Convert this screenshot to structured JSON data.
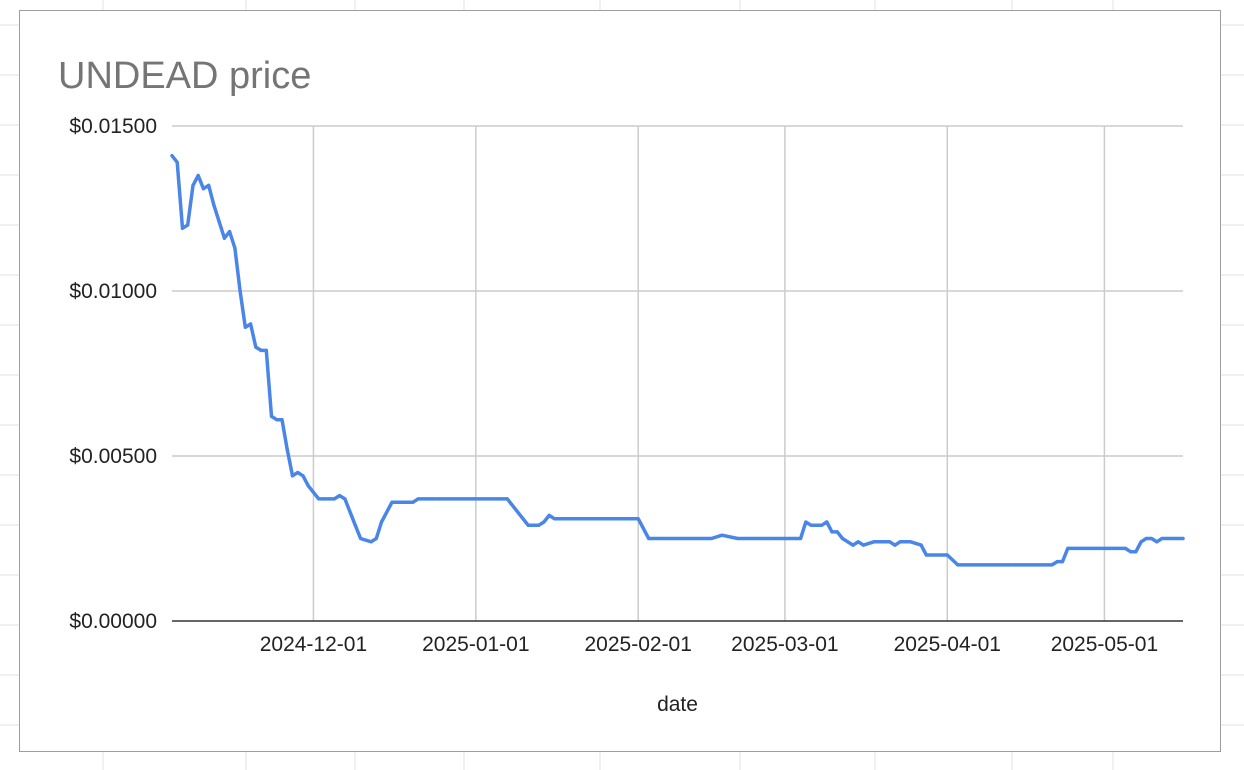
{
  "chart_data": {
    "type": "line",
    "title": "UNDEAD price",
    "xlabel": "date",
    "ylabel": "",
    "ylim": [
      0,
      0.015
    ],
    "xlim": [
      "2024-11-04",
      "2025-05-16"
    ],
    "y_ticks": [
      "$0.00000",
      "$0.00500",
      "$0.01000",
      "$0.01500"
    ],
    "y_tick_values": [
      0,
      0.005,
      0.01,
      0.015
    ],
    "x_ticks": [
      "2024-12-01",
      "2025-01-01",
      "2025-02-01",
      "2025-03-01",
      "2025-04-01",
      "2025-05-01"
    ],
    "grid": true,
    "line_color": "#4a86e8",
    "series": [
      {
        "x": [
          "2024-11-04",
          "2024-11-05",
          "2024-11-06",
          "2024-11-07",
          "2024-11-08",
          "2024-11-09",
          "2024-11-10",
          "2024-11-11",
          "2024-11-12",
          "2024-11-14",
          "2024-11-15",
          "2024-11-16",
          "2024-11-17",
          "2024-11-18",
          "2024-11-19",
          "2024-11-20",
          "2024-11-21",
          "2024-11-22",
          "2024-11-23",
          "2024-11-24",
          "2024-11-25",
          "2024-11-26",
          "2024-11-27",
          "2024-11-28",
          "2024-11-29",
          "2024-11-30",
          "2024-12-01",
          "2024-12-02",
          "2024-12-03",
          "2024-12-04",
          "2024-12-05",
          "2024-12-06",
          "2024-12-07",
          "2024-12-09",
          "2024-12-10",
          "2024-12-12",
          "2024-12-13",
          "2024-12-14",
          "2024-12-16",
          "2024-12-17",
          "2024-12-18",
          "2024-12-19",
          "2024-12-20",
          "2024-12-21",
          "2024-12-25",
          "2024-12-30",
          "2025-01-05",
          "2025-01-07",
          "2025-01-11",
          "2025-01-12",
          "2025-01-13",
          "2025-01-14",
          "2025-01-15",
          "2025-01-16",
          "2025-01-20",
          "2025-01-23",
          "2025-01-31",
          "2025-02-01",
          "2025-02-03",
          "2025-02-04",
          "2025-02-08",
          "2025-02-13",
          "2025-02-14",
          "2025-02-15",
          "2025-02-17",
          "2025-02-20",
          "2025-02-23",
          "2025-02-26",
          "2025-03-01",
          "2025-03-02",
          "2025-03-03",
          "2025-03-04",
          "2025-03-05",
          "2025-03-06",
          "2025-03-07",
          "2025-03-08",
          "2025-03-09",
          "2025-03-10",
          "2025-03-11",
          "2025-03-12",
          "2025-03-13",
          "2025-03-14",
          "2025-03-15",
          "2025-03-16",
          "2025-03-18",
          "2025-03-20",
          "2025-03-21",
          "2025-03-22",
          "2025-03-23",
          "2025-03-25",
          "2025-03-27",
          "2025-03-28",
          "2025-03-31",
          "2025-04-01",
          "2025-04-03",
          "2025-04-04",
          "2025-04-05",
          "2025-04-10",
          "2025-04-14",
          "2025-04-16",
          "2025-04-20",
          "2025-04-21",
          "2025-04-22",
          "2025-04-23",
          "2025-04-24",
          "2025-04-30",
          "2025-05-03",
          "2025-05-04",
          "2025-05-05",
          "2025-05-06",
          "2025-05-07",
          "2025-05-08",
          "2025-05-09",
          "2025-05-10",
          "2025-05-11",
          "2025-05-12",
          "2025-05-13",
          "2025-05-14",
          "2025-05-15",
          "2025-05-16"
        ],
        "values": [
          0.0141,
          0.0139,
          0.0119,
          0.012,
          0.0132,
          0.0135,
          0.0131,
          0.0132,
          0.0126,
          0.0116,
          0.0118,
          0.0113,
          0.01,
          0.0089,
          0.009,
          0.0083,
          0.0082,
          0.0082,
          0.0062,
          0.0061,
          0.0061,
          0.0052,
          0.0044,
          0.0045,
          0.0044,
          0.0041,
          0.0039,
          0.0037,
          0.0037,
          0.0037,
          0.0037,
          0.0038,
          0.0037,
          0.0029,
          0.0025,
          0.0024,
          0.0025,
          0.003,
          0.0036,
          0.0036,
          0.0036,
          0.0036,
          0.0036,
          0.0037,
          0.0037,
          0.0037,
          0.0037,
          0.0037,
          0.0029,
          0.0029,
          0.0029,
          0.003,
          0.0032,
          0.0031,
          0.0031,
          0.0031,
          0.0031,
          0.0031,
          0.0025,
          0.0025,
          0.0025,
          0.0025,
          0.0025,
          0.0025,
          0.0026,
          0.0025,
          0.0025,
          0.0025,
          0.0025,
          0.0025,
          0.0025,
          0.0025,
          0.003,
          0.0029,
          0.0029,
          0.0029,
          0.003,
          0.0027,
          0.0027,
          0.0025,
          0.0024,
          0.0023,
          0.0024,
          0.0023,
          0.0024,
          0.0024,
          0.0024,
          0.0023,
          0.0024,
          0.0024,
          0.0023,
          0.002,
          0.002,
          0.002,
          0.0017,
          0.0017,
          0.0017,
          0.0017,
          0.0017,
          0.0017,
          0.0017,
          0.0017,
          0.0018,
          0.0018,
          0.0022,
          0.0022,
          0.0022,
          0.0022,
          0.0022,
          0.0021,
          0.0021,
          0.0024,
          0.0025,
          0.0025,
          0.0024,
          0.0025,
          0.0025,
          0.0025,
          0.0025,
          0.0025
        ]
      }
    ]
  }
}
